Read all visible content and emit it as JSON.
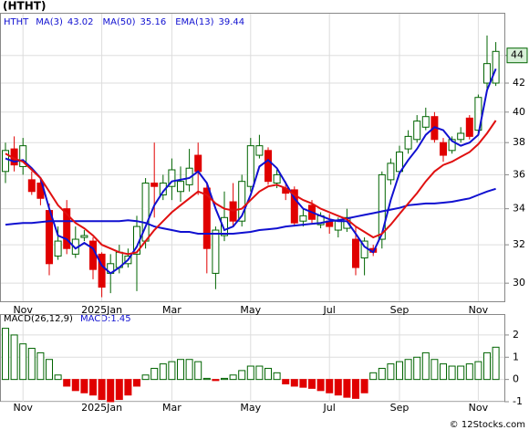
{
  "chart_data": [
    {
      "type": "candlestick",
      "title": "(HTHT)",
      "symbol": "HTHT",
      "log_scale": true,
      "grid": true,
      "categories": [
        null,
        null,
        "Nov",
        null,
        null,
        null,
        null,
        null,
        null,
        null,
        null,
        "2025Jan",
        null,
        null,
        null,
        null,
        null,
        null,
        null,
        "Mar",
        null,
        null,
        null,
        null,
        null,
        null,
        null,
        null,
        "May",
        null,
        null,
        null,
        null,
        null,
        null,
        null,
        null,
        "Jul",
        null,
        null,
        null,
        null,
        null,
        null,
        null,
        "Sep",
        null,
        null,
        null,
        null,
        null,
        null,
        null,
        null,
        "Nov",
        null,
        null
      ],
      "open": [
        36.2,
        37.6,
        36.5,
        35.7,
        35.5,
        33.9,
        31.4,
        34,
        31.5,
        32.4,
        32.2,
        31.5,
        30.5,
        30.8,
        31,
        31.5,
        32.2,
        35.5,
        34.8,
        35.3,
        35,
        35.4,
        37.2,
        35.2,
        30.5,
        32.5,
        34.4,
        33.3,
        35.3,
        37.2,
        37.5,
        35.5,
        35.2,
        35.1,
        33.3,
        34.2,
        33.1,
        33.3,
        32.8,
        32.9,
        32.3,
        31.3,
        31.8,
        32.3,
        35.7,
        36.2,
        37.6,
        38.2,
        39,
        39.7,
        38,
        37.5,
        38.2,
        39.6,
        38.8,
        42,
        42
      ],
      "high": [
        38,
        38.4,
        38.3,
        36.2,
        35.8,
        34.3,
        33,
        34.5,
        33,
        32.8,
        32.4,
        31.6,
        31.5,
        32,
        31.8,
        33.6,
        35.8,
        38,
        36,
        37,
        36.5,
        37.6,
        38,
        35.5,
        33,
        35,
        35.5,
        36,
        38.3,
        38.5,
        37.7,
        36.3,
        35.6,
        35.3,
        34,
        34.5,
        33.8,
        33.7,
        33.5,
        34,
        33,
        32.4,
        32,
        36.2,
        37,
        37.8,
        38.8,
        39.8,
        40.3,
        40,
        38.3,
        38.4,
        39,
        39.8,
        41.2,
        45.5,
        45
      ],
      "low": [
        35.5,
        36.2,
        36,
        34.8,
        34.2,
        30.4,
        31.2,
        31.5,
        31.3,
        32.2,
        30.2,
        29.3,
        29.5,
        30.5,
        30.8,
        29.6,
        31.8,
        33.5,
        34.5,
        34.5,
        34.4,
        35,
        34.8,
        30.5,
        29.7,
        32.2,
        33,
        33,
        35,
        37,
        35.4,
        35.2,
        34.5,
        33,
        33,
        33.2,
        32.9,
        32.6,
        32.4,
        32.7,
        30.4,
        30.4,
        31.4,
        31.8,
        35.4,
        36,
        37.3,
        38,
        38.8,
        38,
        36.8,
        37.3,
        38,
        38.2,
        38.6,
        41.5,
        41.8
      ],
      "close": [
        37.5,
        36.6,
        37.8,
        35,
        34.6,
        31,
        32.2,
        31.8,
        32.3,
        32.5,
        30.7,
        29.8,
        31,
        31.6,
        31.4,
        33,
        35.5,
        35.3,
        35.5,
        36.3,
        35.6,
        36.4,
        36.2,
        31.8,
        32.8,
        33.5,
        33.3,
        35.6,
        37.8,
        37.8,
        35.6,
        36,
        34.9,
        33.2,
        33.6,
        33.4,
        33.6,
        33,
        33.3,
        33.5,
        30.8,
        32.2,
        31.6,
        36,
        36.7,
        37.4,
        38.4,
        39.4,
        39.7,
        38.2,
        37.2,
        38.2,
        38.6,
        38.4,
        41,
        43.4,
        44.3
      ],
      "up_color": "#006400",
      "down_color": "#e00000",
      "series": [
        {
          "name": "MA(3)",
          "last": 43.02,
          "color": "#1010d0",
          "values": [
            37.0,
            36.8,
            36.9,
            36.4,
            35.8,
            34.0,
            32.5,
            32.3,
            31.8,
            32.1,
            31.8,
            30.9,
            30.5,
            30.8,
            31.2,
            31.9,
            33.0,
            34.2,
            35.0,
            35.6,
            35.7,
            35.8,
            36.2,
            35.5,
            34.0,
            32.8,
            33.0,
            33.6,
            34.8,
            36.5,
            36.9,
            36.4,
            35.5,
            34.6,
            34.0,
            33.8,
            33.6,
            33.4,
            33.3,
            33.3,
            32.6,
            31.9,
            31.6,
            32.6,
            34.5,
            36.1,
            36.9,
            37.6,
            38.5,
            39.0,
            38.8,
            38.1,
            37.8,
            38.0,
            38.5,
            41.5,
            43.02
          ]
        },
        {
          "name": "MA(50)",
          "last": 35.16,
          "color": "#1010d0",
          "values": [
            33.1,
            33.15,
            33.2,
            33.2,
            33.25,
            33.3,
            33.3,
            33.3,
            33.3,
            33.3,
            33.3,
            33.3,
            33.3,
            33.3,
            33.35,
            33.3,
            33.2,
            33.0,
            32.9,
            32.8,
            32.7,
            32.7,
            32.6,
            32.6,
            32.6,
            32.6,
            32.6,
            32.65,
            32.7,
            32.8,
            32.85,
            32.9,
            33.0,
            33.05,
            33.1,
            33.15,
            33.2,
            33.3,
            33.35,
            33.45,
            33.55,
            33.65,
            33.75,
            33.85,
            33.95,
            34.05,
            34.2,
            34.25,
            34.3,
            34.3,
            34.35,
            34.4,
            34.5,
            34.6,
            34.8,
            35.0,
            35.16
          ]
        },
        {
          "name": "EMA(13)",
          "last": 39.44,
          "color": "#e01010",
          "values": [
            37.3,
            37.0,
            36.8,
            36.3,
            35.8,
            35.0,
            34.2,
            33.7,
            33.2,
            32.9,
            32.5,
            32.0,
            31.8,
            31.6,
            31.5,
            31.6,
            32.2,
            32.8,
            33.3,
            33.8,
            34.2,
            34.6,
            35.0,
            34.8,
            34.3,
            34.0,
            33.9,
            34.0,
            34.5,
            35.0,
            35.3,
            35.4,
            35.2,
            34.8,
            34.5,
            34.3,
            34.0,
            33.8,
            33.6,
            33.4,
            33.0,
            32.7,
            32.4,
            32.6,
            33.1,
            33.7,
            34.3,
            34.9,
            35.6,
            36.2,
            36.6,
            36.8,
            37.1,
            37.4,
            37.9,
            38.6,
            39.44
          ]
        }
      ],
      "ylim": [
        29.1,
        47.2
      ],
      "yticks": [
        30,
        32,
        34,
        36,
        38,
        40,
        42,
        44
      ],
      "price_marker": 44,
      "marker_color": "#d8f0d8"
    },
    {
      "type": "bar",
      "title": "MACD(26,12,9)",
      "reading": "MACD:1.45",
      "grid": true,
      "categories": [
        null,
        null,
        "Nov",
        null,
        null,
        null,
        null,
        null,
        null,
        null,
        null,
        "2025Jan",
        null,
        null,
        null,
        null,
        null,
        null,
        null,
        "Mar",
        null,
        null,
        null,
        null,
        null,
        null,
        null,
        null,
        "May",
        null,
        null,
        null,
        null,
        null,
        null,
        null,
        null,
        "Jul",
        null,
        null,
        null,
        null,
        null,
        null,
        null,
        "Sep",
        null,
        null,
        null,
        null,
        null,
        null,
        null,
        null,
        "Nov",
        null,
        null
      ],
      "values": [
        2.3,
        2.0,
        1.6,
        1.4,
        1.2,
        0.9,
        0.2,
        -0.3,
        -0.5,
        -0.6,
        -0.7,
        -0.9,
        -1.0,
        -0.9,
        -0.7,
        -0.3,
        0.2,
        0.5,
        0.7,
        0.8,
        0.9,
        0.9,
        0.8,
        0.05,
        -0.05,
        0.05,
        0.2,
        0.4,
        0.6,
        0.6,
        0.5,
        0.3,
        -0.2,
        -0.3,
        -0.35,
        -0.4,
        -0.5,
        -0.6,
        -0.7,
        -0.8,
        -0.85,
        -0.6,
        0.3,
        0.5,
        0.7,
        0.8,
        0.9,
        1.0,
        1.2,
        0.9,
        0.7,
        0.6,
        0.6,
        0.7,
        0.8,
        1.2,
        1.45
      ],
      "up_color": "#006400",
      "down_color": "#e00000",
      "ylim": [
        -1,
        2.9
      ],
      "yticks": [
        -1,
        0,
        1,
        2
      ]
    }
  ],
  "footer": "© 12Stocks.com"
}
